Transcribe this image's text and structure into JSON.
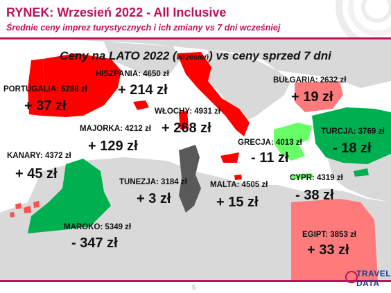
{
  "header": {
    "title": "RYNEK: Wrzesień 2022 - All Inclusive",
    "subtitle": "Średnie ceny imprez turystycznych i ich zmiany vs 7 dni wcześniej"
  },
  "map": {
    "title_part1": "Ceny na LATO 2022 (",
    "title_small": "wrzesień",
    "title_part2": ") vs ceny sprzed 7 dni"
  },
  "destinations": [
    {
      "id": "portugalia",
      "label": "PORTUGALIA: 5288 zł",
      "change": "+ 37 zł",
      "color": "#ff0000"
    },
    {
      "id": "hiszpania",
      "label": "HISZPANIA: 4650 zł",
      "change": "+ 214 zł",
      "color": "#ff0000"
    },
    {
      "id": "wlochy",
      "label": "WŁOCHY: 4931 zł",
      "change": "+ 268 zł",
      "color": "#ff0000"
    },
    {
      "id": "bulgaria",
      "label": "BUŁGARIA: 2632 zł",
      "change": "+ 19 zł",
      "color": "#ff7b7b"
    },
    {
      "id": "majorka",
      "label": "MAJORKA: 4212 zł",
      "change": "+ 129 zł",
      "color": "#ff0000"
    },
    {
      "id": "grecja",
      "label": "GRECJA: 4013 zł",
      "change": "- 11 zł",
      "color": "#66ff66"
    },
    {
      "id": "turcja",
      "label": "TURCJA: 3769 zł",
      "change": "- 18 zł",
      "color": "#00b050"
    },
    {
      "id": "kanary",
      "label": "KANARY: 4372 zł",
      "change": "+ 45 zł",
      "color": "#ff5050"
    },
    {
      "id": "tunezja",
      "label": "TUNEZJA: 3184 zł",
      "change": "+ 3 zł",
      "color": "#595959"
    },
    {
      "id": "malta",
      "label": "MALTA: 4505 zł",
      "change": "+ 15 zł",
      "color": "#ff0000"
    },
    {
      "id": "cypr",
      "label": "CYPR: 4319 zł",
      "change": "- 38 zł",
      "color": "#00b050"
    },
    {
      "id": "maroko",
      "label": "MAROKO: 5349 zł",
      "change": "- 347 zł",
      "color": "#00b050"
    },
    {
      "id": "egipt",
      "label": "EGIPT: 3853 zł",
      "change": "+ 33 zł",
      "color": "#ff7b7b"
    }
  ],
  "footer": {
    "page_number": "5",
    "logo_line1": "TRAVEL",
    "logo_line2": "DATA"
  },
  "colors": {
    "accent": "#c0105a",
    "land": "#d9d9d9"
  }
}
